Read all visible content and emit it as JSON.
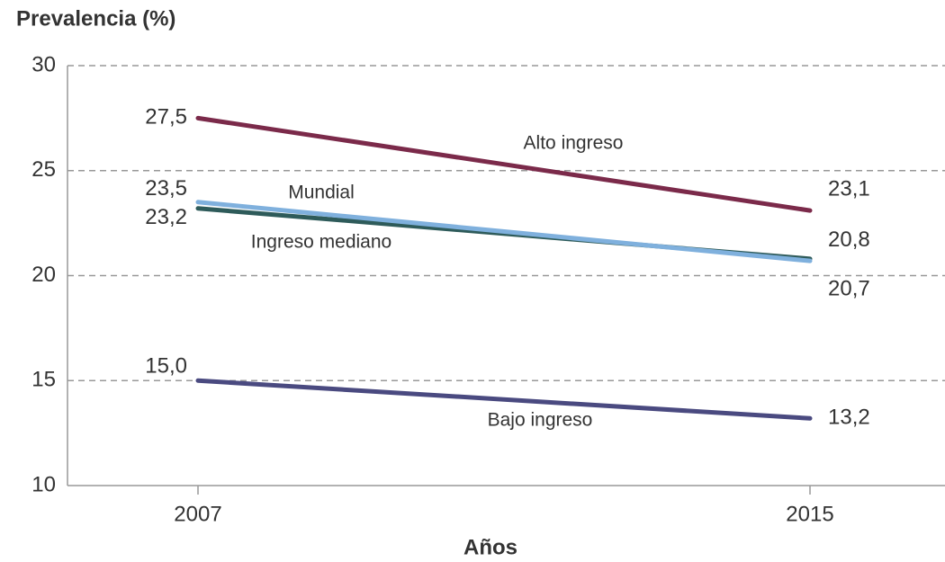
{
  "chart_data": {
    "type": "line",
    "title": "Prevalencia (%)",
    "x_label": "Años",
    "categories": [
      "2007",
      "2015"
    ],
    "series": [
      {
        "name": "Alto ingreso",
        "color": "#7b2a4a",
        "values": [
          27.5,
          23.1
        ],
        "value_labels": [
          "27,5",
          "23,1"
        ]
      },
      {
        "name": "Ingreso mediano",
        "color": "#2e5b5a",
        "values": [
          23.2,
          20.8
        ],
        "value_labels": [
          "23,2",
          "20,8"
        ]
      },
      {
        "name": "Mundial",
        "color": "#7fb0dd",
        "values": [
          23.5,
          20.7
        ],
        "value_labels": [
          "23,5",
          "20,7"
        ]
      },
      {
        "name": "Bajo ingreso",
        "color": "#4a4a80",
        "values": [
          15.0,
          13.2
        ],
        "value_labels": [
          "15,0",
          "13,2"
        ]
      }
    ],
    "ylim": [
      10,
      30
    ],
    "yticks": [
      10,
      15,
      20,
      25,
      30
    ],
    "grid": true
  }
}
